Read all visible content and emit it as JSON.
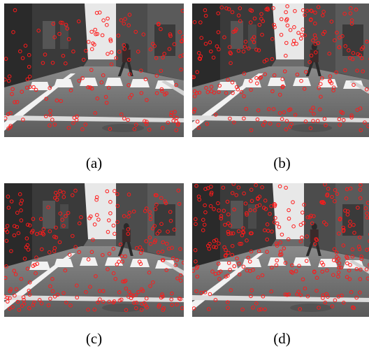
{
  "figure": {
    "panels": [
      {
        "id": "a",
        "caption": "(a)"
      },
      {
        "id": "b",
        "caption": "(b)"
      },
      {
        "id": "c",
        "caption": "(c)"
      },
      {
        "id": "d",
        "caption": "(d)"
      }
    ]
  },
  "colors": {
    "marker": "#ff1a1a",
    "sky": "#e8e8e8",
    "road": "#6e6e6e",
    "building": "#3a3a3a",
    "lane_marking": "#f2f2f2"
  }
}
